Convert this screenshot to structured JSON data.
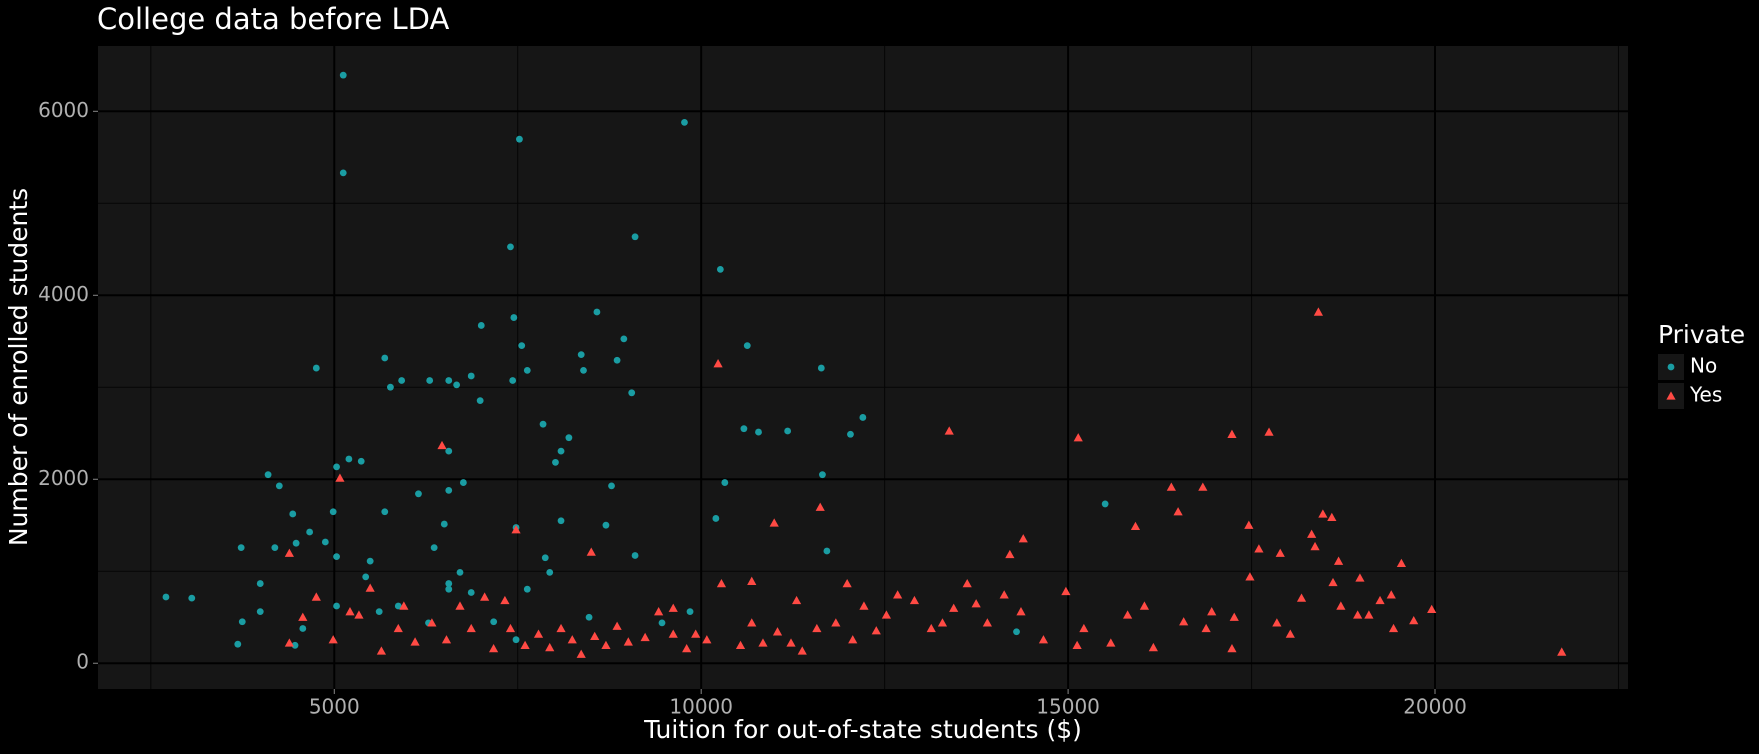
{
  "chart_data": {
    "type": "scatter",
    "title": "College data before LDA",
    "x_label": "Tuition for out-of-state students ($)",
    "y_label": "Number of enrolled students",
    "legend_title": "Private",
    "legend_position": "right",
    "grid": true,
    "xlim": [
      1780,
      22630
    ],
    "ylim": [
      -280,
      6710
    ],
    "xticks": [
      5000,
      10000,
      15000,
      20000
    ],
    "yticks": [
      0,
      2000,
      4000,
      6000
    ],
    "series": [
      {
        "name": "No",
        "color": "#1a9da3",
        "shape": "circle",
        "x": [
          2706,
          3058,
          3731,
          3685,
          3746,
          4098,
          4251,
          4190,
          3991,
          4480,
          4434,
          4755,
          4664,
          5031,
          4985,
          5122,
          5122,
          5031,
          5199,
          5367,
          4878,
          5688,
          5765,
          5918,
          6300,
          6560,
          6667,
          6866,
          6988,
          6560,
          6759,
          7523,
          7401,
          7447,
          7554,
          7630,
          7431,
          7003,
          7845,
          8090,
          8197,
          8365,
          8396,
          8579,
          8946,
          8854,
          9053,
          9099,
          9772,
          10261,
          10628,
          10582,
          10781,
          11178,
          11637,
          12034,
          12203,
          10322,
          11652,
          11713,
          10200,
          9099,
          15505,
          8778,
          8014,
          5688,
          6147,
          6361,
          6560,
          6560,
          6713,
          6866,
          7172,
          7477,
          8472,
          9466,
          9848,
          14297,
          4465,
          4571,
          3991,
          5428,
          5872,
          6284,
          5031,
          7630,
          7875,
          7936,
          6499,
          6560,
          7477,
          8090,
          8702,
          5489,
          5612
        ],
        "values": [
          720,
          708,
          1257,
          207,
          451,
          2050,
          1928,
          1257,
          866,
          1305,
          1623,
          3209,
          1427,
          1159,
          1647,
          6393,
          5331,
          2135,
          2220,
          2196,
          1318,
          3318,
          3001,
          3074,
          3074,
          3074,
          3026,
          3123,
          2855,
          2306,
          1964,
          5697,
          4526,
          3758,
          3453,
          3184,
          3074,
          3672,
          2599,
          2306,
          2452,
          3355,
          3184,
          3818,
          3526,
          3294,
          2940,
          4636,
          5880,
          4282,
          3453,
          2550,
          2513,
          2525,
          3209,
          2489,
          2672,
          1964,
          2050,
          1220,
          1574,
          1171,
          1732,
          1928,
          2184,
          1647,
          1842,
          1257,
          805,
          866,
          988,
          769,
          451,
          256,
          500,
          439,
          561,
          342,
          195,
          378,
          561,
          939,
          622,
          439,
          622,
          805,
          1147,
          988,
          1513,
          1879,
          1476,
          1549,
          1501,
          1110,
          561
        ]
      },
      {
        "name": "Yes",
        "color": "#ff4a44",
        "shape": "triangle",
        "x": [
          5077,
          6468,
          7477,
          8502,
          10230,
          10995,
          11622,
          13380,
          15138,
          15918,
          16407,
          16499,
          16836,
          17233,
          17738,
          17463,
          17600,
          17891,
          18319,
          18365,
          18411,
          18472,
          18594,
          18686,
          18610,
          17478,
          19542,
          18977,
          21727,
          19955,
          19710,
          19435,
          19099,
          18717,
          18181,
          17845,
          17264,
          17233,
          16881,
          16575,
          16162,
          15811,
          15582,
          15215,
          14970,
          14664,
          14389,
          14206,
          14129,
          13900,
          13625,
          13441,
          13135,
          12906,
          12524,
          12218,
          12065,
          11835,
          11576,
          11377,
          11224,
          11040,
          10842,
          10689,
          10536,
          10276,
          10077,
          9925,
          9802,
          9619,
          9420,
          9236,
          9007,
          8854,
          8702,
          8549,
          8365,
          8243,
          8090,
          7936,
          7783,
          7600,
          7401,
          7171,
          7049,
          6866,
          6713,
          6529,
          6330,
          6101,
          5872,
          5642,
          5489,
          5336,
          5214,
          4985,
          4755,
          4571,
          4388,
          4388,
          11300,
          11989,
          12677,
          15123,
          16040,
          16957,
          18028,
          19251,
          19404,
          18946,
          14358,
          13747,
          13288,
          10689,
          12386,
          9619,
          7325,
          5948
        ],
        "values": [
          2013,
          2367,
          1452,
          1208,
          3257,
          1525,
          1696,
          2525,
          2452,
          1488,
          1915,
          1647,
          1915,
          2489,
          2513,
          1501,
          1244,
          1196,
          1403,
          1269,
          3818,
          1623,
          1586,
          1110,
          878,
          939,
          1086,
          927,
          122,
          586,
          464,
          378,
          525,
          622,
          708,
          439,
          500,
          159,
          378,
          451,
          171,
          525,
          220,
          378,
          781,
          256,
          1354,
          1183,
          744,
          439,
          866,
          598,
          378,
          683,
          525,
          622,
          256,
          439,
          378,
          134,
          220,
          342,
          220,
          439,
          195,
          866,
          256,
          317,
          159,
          317,
          561,
          281,
          232,
          403,
          195,
          293,
          98,
          256,
          378,
          171,
          317,
          195,
          378,
          159,
          720,
          378,
          622,
          256,
          439,
          232,
          378,
          134,
          817,
          525,
          561,
          256,
          720,
          500,
          220,
          1196,
          683,
          866,
          744,
          195,
          622,
          561,
          317,
          683,
          744,
          525,
          561,
          647,
          439,
          891,
          354,
          598,
          683,
          622
        ]
      }
    ]
  }
}
